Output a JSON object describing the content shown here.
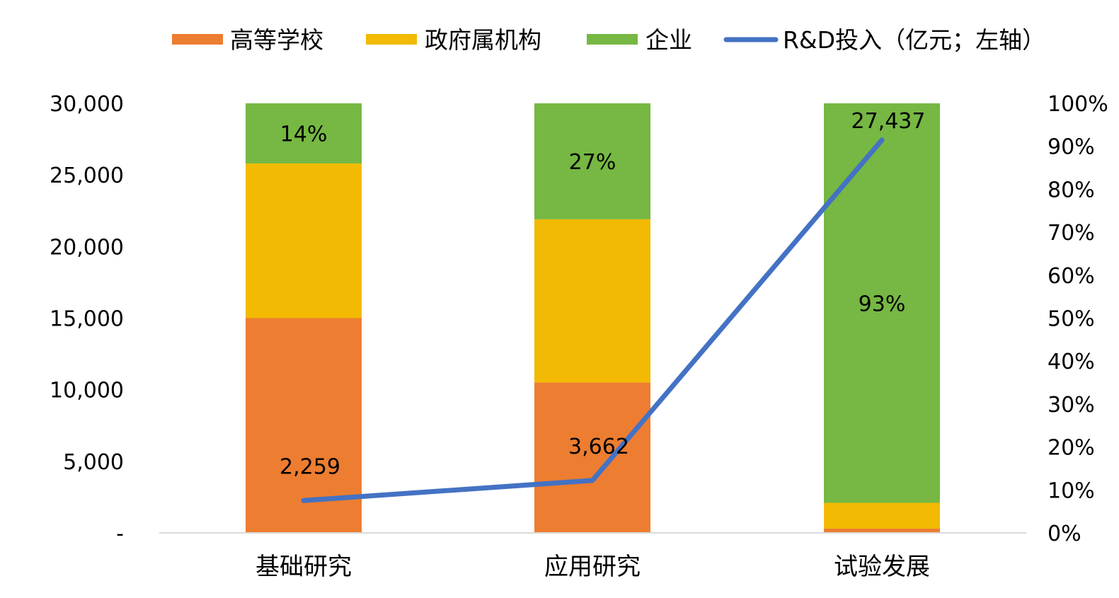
{
  "chart_data": {
    "type": "bar",
    "subtype": "stacked-percent-bar-with-line",
    "title": "",
    "categories": [
      "基础研究",
      "应用研究",
      "试验发展"
    ],
    "series": [
      {
        "name": "高等学校",
        "axis": "right",
        "values": [
          50,
          35,
          1
        ],
        "color": "#ED7D31"
      },
      {
        "name": "政府属机构",
        "axis": "right",
        "values": [
          36,
          38,
          6
        ],
        "color": "#F2BA02"
      },
      {
        "name": "企业",
        "axis": "right",
        "values": [
          14,
          27,
          93
        ],
        "color": "#76B843",
        "data_labels": [
          "14%",
          "27%",
          "93%"
        ]
      }
    ],
    "line_series": {
      "name": "R&D投入（亿元；左轴）",
      "axis": "left",
      "values": [
        2259,
        3662,
        27437
      ],
      "color": "#4472C4",
      "data_labels": [
        "2,259",
        "3,662",
        "27,437"
      ]
    },
    "left_axis": {
      "ylim": [
        0,
        30000
      ],
      "ticks": [
        "-",
        "5,000",
        "10,000",
        "15,000",
        "20,000",
        "25,000",
        "30,000"
      ]
    },
    "right_axis": {
      "ylim": [
        0,
        100
      ],
      "ticks": [
        "0%",
        "10%",
        "20%",
        "30%",
        "40%",
        "50%",
        "60%",
        "70%",
        "80%",
        "90%",
        "100%"
      ]
    },
    "grid": false,
    "legend_position": "top"
  }
}
